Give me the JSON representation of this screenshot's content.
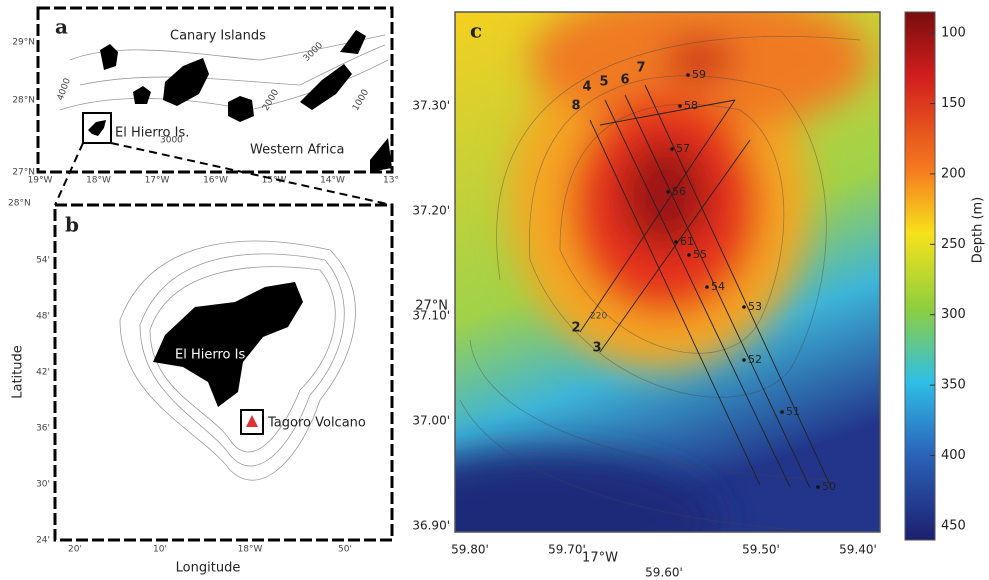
{
  "panel_a": {
    "letter": "a",
    "title": "Canary Islands",
    "labels": [
      "El Hierro Is.",
      "Western Africa"
    ],
    "contours": [
      "4000",
      "3000",
      "2000",
      "1000",
      "3000"
    ],
    "lat_ticks": [
      "29°N",
      "28°N",
      "27°N"
    ],
    "lon_ticks": [
      "19°W",
      "18°W",
      "17°W",
      "16°W",
      "15°W",
      "14°W",
      "13°"
    ]
  },
  "panel_b": {
    "letter": "b",
    "corner": "28°N",
    "island": "El Hierro Is.",
    "volcano": "Tagoro Volcano",
    "y_label": "Latitude",
    "x_label": "Longitude",
    "lat_ticks": [
      "54'",
      "48'",
      "42'",
      "36'",
      "30'",
      "24'"
    ],
    "lon_ticks": [
      "20'",
      "10'",
      "18°W",
      "50'"
    ]
  },
  "panel_c": {
    "letter": "c",
    "lines": [
      "8",
      "4",
      "5",
      "6",
      "7",
      "2",
      "3"
    ],
    "stations": [
      "59",
      "58",
      "57",
      "56",
      "61",
      "55",
      "54",
      "53",
      "52",
      "51",
      "50"
    ],
    "lat_ticks": [
      "37.30'",
      "37.20'",
      "37.10'",
      "37.00'",
      "36.90'"
    ],
    "lat_deg": "27°N",
    "lon_ticks": [
      "59.80'",
      "59.70'",
      "59.60'",
      "59.50'",
      "59.40'"
    ],
    "lon_deg": "17°W",
    "contour": "220"
  },
  "colorbar": {
    "label": "Depth (m)",
    "ticks": [
      100,
      150,
      200,
      250,
      300,
      350,
      400,
      450
    ],
    "range": [
      85,
      460
    ]
  }
}
